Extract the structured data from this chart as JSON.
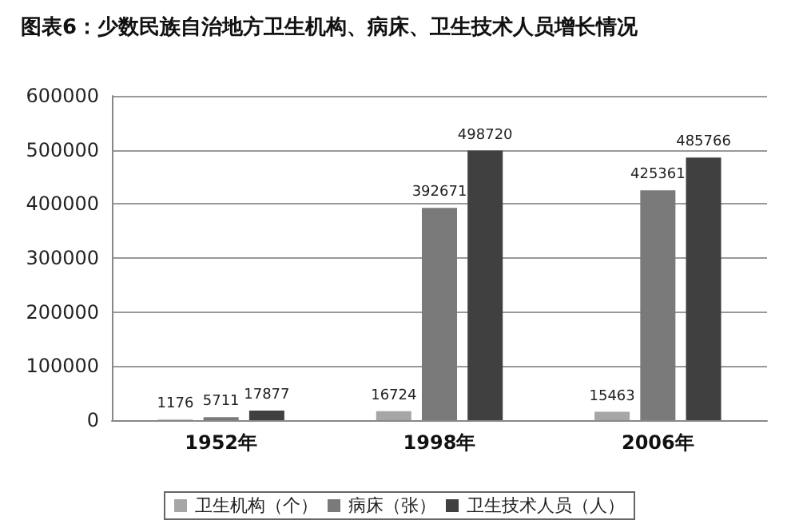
{
  "chart_data": {
    "type": "bar",
    "title": "图表6：少数民族自治地方卫生机构、病床、卫生技术人员增长情况",
    "categories": [
      "1952年",
      "1998年",
      "2006年"
    ],
    "series": [
      {
        "name": "卫生机构（个）",
        "color": "#a6a6a6",
        "values": [
          1176,
          16724,
          15463
        ]
      },
      {
        "name": "病床（张）",
        "color": "#7a7a7a",
        "values": [
          5711,
          392671,
          425361
        ]
      },
      {
        "name": "卫生技术人员（人）",
        "color": "#404040",
        "values": [
          17877,
          498720,
          485766
        ]
      }
    ],
    "ylim": [
      0,
      600000
    ],
    "yticks": [
      0,
      100000,
      200000,
      300000,
      400000,
      500000,
      600000
    ],
    "grid": "y",
    "legend": "bottom",
    "data_labels": true
  }
}
